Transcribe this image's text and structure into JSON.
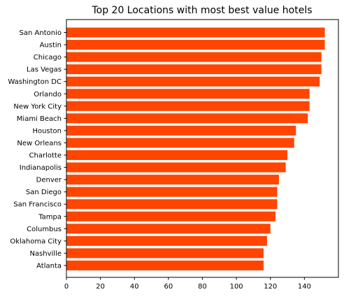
{
  "chart_data": {
    "type": "bar",
    "orientation": "horizontal",
    "title": "Top 20 Locations with most best value hotels",
    "xlabel": "",
    "ylabel": "",
    "categories": [
      "San Antonio",
      "Austin",
      "Chicago",
      "Las Vegas",
      "Washington DC",
      "Orlando",
      "New York City",
      "Miami Beach",
      "Houston",
      "New Orleans",
      "Charlotte",
      "Indianapolis",
      "Denver",
      "San Diego",
      "San Francisco",
      "Tampa",
      "Columbus",
      "Oklahoma City",
      "Nashville",
      "Atlanta"
    ],
    "values": [
      152,
      152,
      150,
      150,
      149,
      143,
      143,
      142,
      135,
      134,
      130,
      129,
      125,
      124,
      124,
      123,
      120,
      118,
      116,
      116
    ],
    "xlim": [
      0,
      160
    ],
    "xticks": [
      0,
      20,
      40,
      60,
      80,
      100,
      120,
      140
    ],
    "grid": false,
    "bar_color": "#ff4500"
  }
}
